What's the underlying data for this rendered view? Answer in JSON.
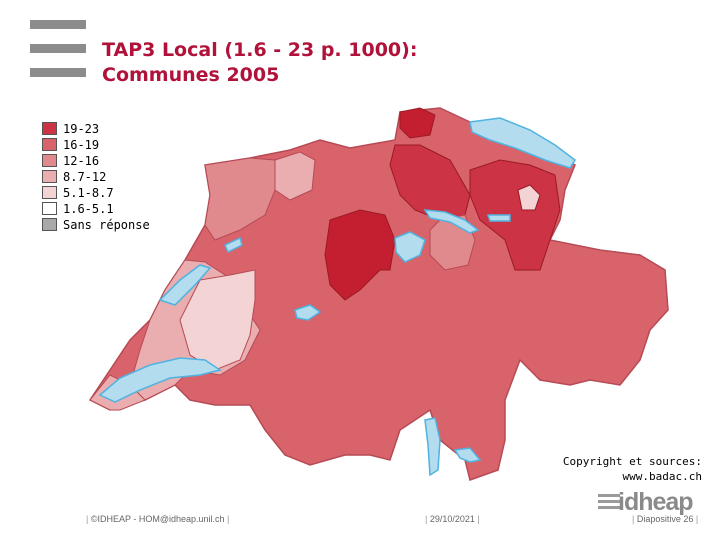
{
  "slide": {
    "title_line1": "TAP3 Local (1.6 - 23 p. 1000):",
    "title_line2": "Communes 2005"
  },
  "legend": [
    {
      "label": "19-23",
      "color": "#cc3344"
    },
    {
      "label": "16-19",
      "color": "#d8636b"
    },
    {
      "label": "12-16",
      "color": "#e08a8e"
    },
    {
      "label": "8.7-12",
      "color": "#eaaeb0"
    },
    {
      "label": "5.1-8.7",
      "color": "#f4d3d4"
    },
    {
      "label": "1.6-5.1",
      "color": "#ffffff"
    },
    {
      "label": "Sans réponse",
      "color": "#a9a9a9"
    }
  ],
  "colors": {
    "lake": "#b3dcef",
    "lake_border": "#4fb3e0",
    "border": "#b64a55",
    "title": "#b0123a"
  },
  "copyright": {
    "line1": "Copyright et sources:",
    "line2": "www.badac.ch"
  },
  "footer": {
    "left": "©IDHEAP - HOM@idheap.unil.ch",
    "center": "29/10/2021",
    "right": "Diapositive 26"
  },
  "logo": {
    "text": "idheap"
  }
}
